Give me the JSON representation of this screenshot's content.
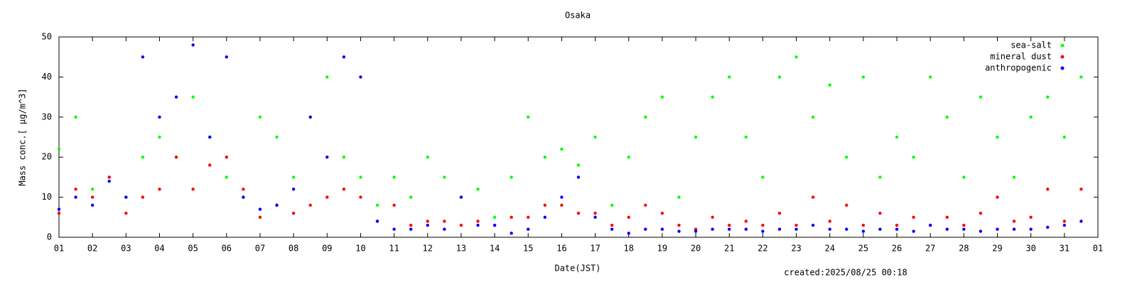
{
  "chart_data": {
    "type": "scatter",
    "title": "Osaka",
    "x_label": "Date(JST)",
    "y_label": "Mass conc.[ μg/m^3]",
    "footer": "created:2025/08/25 00:18",
    "legend": "upper right",
    "xlim": [
      1,
      32
    ],
    "ylim": [
      0,
      50
    ],
    "yticks": [
      0,
      10,
      20,
      30,
      40,
      50
    ],
    "xticks": [
      {
        "value": 1,
        "label": "01"
      },
      {
        "value": 2,
        "label": "02"
      },
      {
        "value": 3,
        "label": "03"
      },
      {
        "value": 4,
        "label": "04"
      },
      {
        "value": 5,
        "label": "05"
      },
      {
        "value": 6,
        "label": "06"
      },
      {
        "value": 7,
        "label": "07"
      },
      {
        "value": 8,
        "label": "08"
      },
      {
        "value": 9,
        "label": "09"
      },
      {
        "value": 10,
        "label": "10"
      },
      {
        "value": 11,
        "label": "11"
      },
      {
        "value": 12,
        "label": "12"
      },
      {
        "value": 13,
        "label": "13"
      },
      {
        "value": 14,
        "label": "14"
      },
      {
        "value": 15,
        "label": "15"
      },
      {
        "value": 16,
        "label": "16"
      },
      {
        "value": 17,
        "label": "17"
      },
      {
        "value": 18,
        "label": "18"
      },
      {
        "value": 19,
        "label": "19"
      },
      {
        "value": 20,
        "label": "20"
      },
      {
        "value": 21,
        "label": "21"
      },
      {
        "value": 22,
        "label": "22"
      },
      {
        "value": 23,
        "label": "23"
      },
      {
        "value": 24,
        "label": "24"
      },
      {
        "value": 25,
        "label": "25"
      },
      {
        "value": 26,
        "label": "26"
      },
      {
        "value": 27,
        "label": "27"
      },
      {
        "value": 28,
        "label": "28"
      },
      {
        "value": 29,
        "label": "29"
      },
      {
        "value": 30,
        "label": "30"
      },
      {
        "value": 31,
        "label": "31"
      },
      {
        "value": 32,
        "label": "01"
      }
    ],
    "x": [
      1,
      1.5,
      2,
      2.5,
      3,
      3.5,
      4,
      4.5,
      5,
      5.5,
      6,
      6.5,
      7,
      7.5,
      8,
      8.5,
      9,
      9.5,
      10,
      10.5,
      11,
      11.5,
      12,
      12.5,
      13,
      13.5,
      14,
      14.5,
      15,
      15.5,
      16,
      16.5,
      17,
      17.5,
      18,
      18.5,
      19,
      19.5,
      20,
      20.5,
      21,
      21.5,
      22,
      22.5,
      23,
      23.5,
      24,
      24.5,
      25,
      25.5,
      26,
      26.5,
      27,
      27.5,
      28,
      28.5,
      29,
      29.5,
      30,
      30.5,
      31,
      31.5
    ],
    "series": [
      {
        "name": "sea-salt",
        "color": "#00ff00",
        "values": [
          22,
          30,
          12,
          15,
          10,
          20,
          25,
          20,
          35,
          25,
          15,
          10,
          30,
          25,
          15,
          30,
          40,
          20,
          15,
          8,
          15,
          10,
          20,
          15,
          10,
          12,
          5,
          15,
          30,
          20,
          22,
          18,
          25,
          8,
          20,
          30,
          35,
          10,
          25,
          35,
          40,
          25,
          15,
          40,
          45,
          30,
          38,
          20,
          40,
          15,
          25,
          20,
          40,
          30,
          15,
          35,
          25,
          15,
          30,
          35,
          25,
          40
        ]
      },
      {
        "name": "mineral dust",
        "color": "#ff0000",
        "values": [
          6,
          12,
          10,
          15,
          6,
          10,
          12,
          20,
          12,
          18,
          20,
          12,
          5,
          8,
          6,
          8,
          10,
          12,
          10,
          4,
          8,
          3,
          4,
          4,
          3,
          4,
          3,
          5,
          5,
          8,
          8,
          6,
          6,
          3,
          5,
          8,
          6,
          3,
          2,
          5,
          3,
          4,
          3,
          6,
          3,
          10,
          4,
          8,
          3,
          6,
          3,
          5,
          3,
          5,
          3,
          6,
          10,
          4,
          5,
          12,
          4,
          12
        ]
      },
      {
        "name": "anthropogenic",
        "color": "#0000ff",
        "values": [
          7,
          10,
          8,
          14,
          10,
          45,
          30,
          35,
          48,
          25,
          45,
          10,
          7,
          8,
          12,
          30,
          20,
          45,
          40,
          4,
          2,
          2,
          3,
          2,
          10,
          3,
          3,
          1,
          2,
          5,
          10,
          15,
          5,
          2,
          1,
          2,
          2,
          1.5,
          1.5,
          2,
          2,
          2,
          1.5,
          2,
          2,
          3,
          2,
          2,
          1.5,
          2,
          2,
          1.5,
          3,
          2,
          2,
          1.5,
          2,
          2,
          2,
          2.5,
          3,
          4
        ]
      }
    ]
  }
}
